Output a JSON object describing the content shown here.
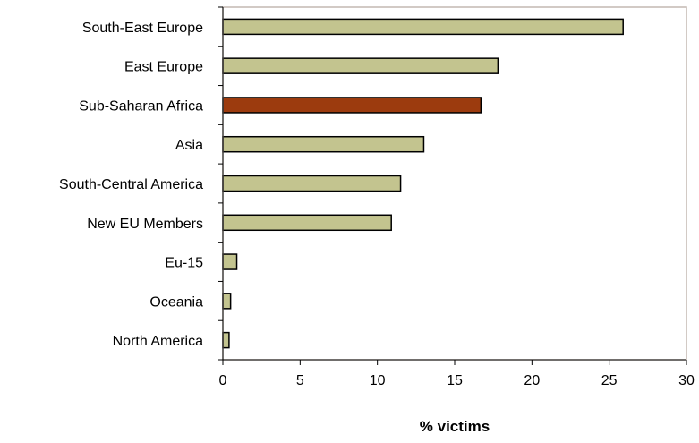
{
  "chart_data": {
    "type": "bar",
    "orientation": "horizontal",
    "title": "",
    "xlabel": "% victims",
    "ylabel": "",
    "xlim": [
      0,
      30
    ],
    "x_ticks": [
      "0",
      "5",
      "10",
      "15",
      "20",
      "25",
      "30"
    ],
    "categories": [
      "South-East Europe",
      "East Europe",
      "Sub-Saharan Africa",
      "Asia",
      "South-Central America",
      "New EU Members",
      "Eu-15",
      "Oceania",
      "North America"
    ],
    "values": [
      25.9,
      17.8,
      16.7,
      13.0,
      11.5,
      10.9,
      0.9,
      0.5,
      0.4
    ],
    "highlight_index": 2,
    "colors": {
      "bar": "#c3c48f",
      "highlight": "#9c3b0e",
      "border": "#000000",
      "plot_border": "#c4b8b2"
    },
    "grid": false,
    "legend": "none"
  }
}
